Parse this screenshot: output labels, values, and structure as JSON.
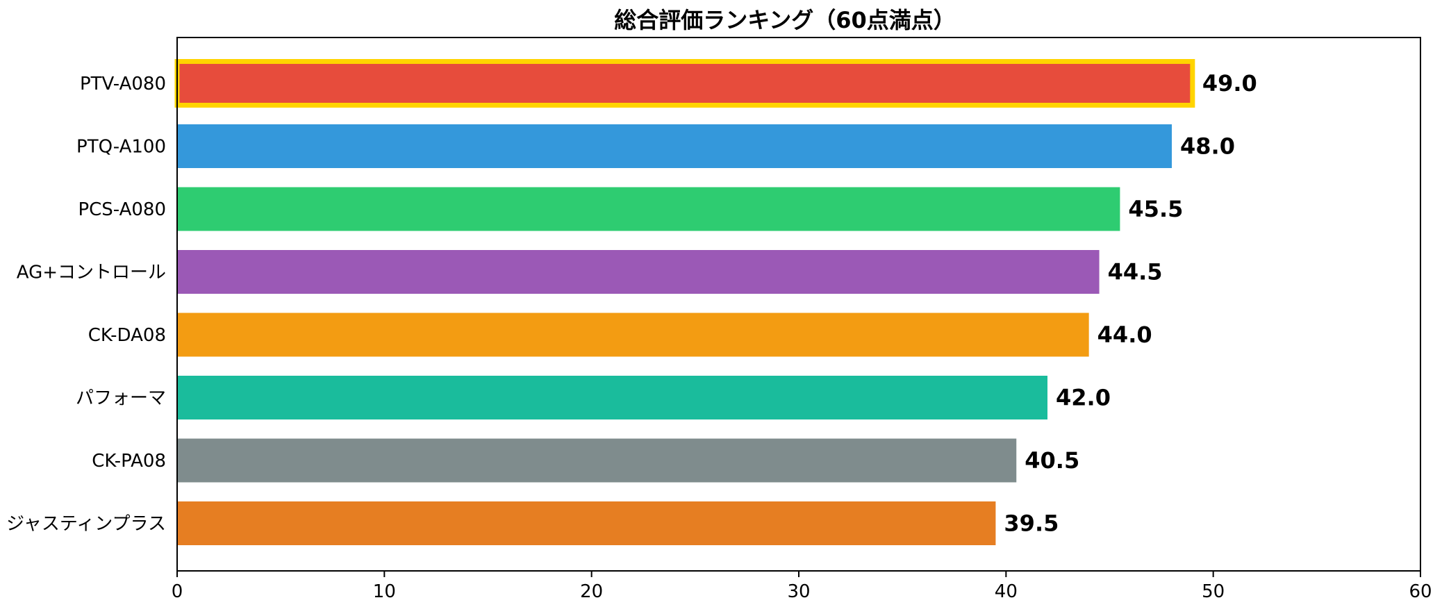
{
  "chart_data": {
    "type": "bar",
    "orientation": "horizontal",
    "title": "総合評価ランキング（60点満点）",
    "xlabel": "",
    "ylabel": "",
    "xlim": [
      0,
      60
    ],
    "xticks": [
      0,
      10,
      20,
      30,
      40,
      50,
      60
    ],
    "grid": false,
    "categories": [
      "PTV-A080",
      "PTQ-A100",
      "PCS-A080",
      "AG+コントロール",
      "CK-DA08",
      "パフォーマ",
      "CK-PA08",
      "ジャスティンプラス"
    ],
    "values": [
      49.0,
      48.0,
      45.5,
      44.5,
      44.0,
      42.0,
      40.5,
      39.5
    ],
    "value_labels": [
      "49.0",
      "48.0",
      "45.5",
      "44.5",
      "44.0",
      "42.0",
      "40.5",
      "39.5"
    ],
    "colors": [
      "#e74c3c",
      "#3498db",
      "#2ecc71",
      "#9b59b6",
      "#f39c12",
      "#1abc9c",
      "#7f8c8d",
      "#e67e22"
    ],
    "highlight": {
      "category": "PTV-A080",
      "outline_color": "#ffd400"
    }
  }
}
